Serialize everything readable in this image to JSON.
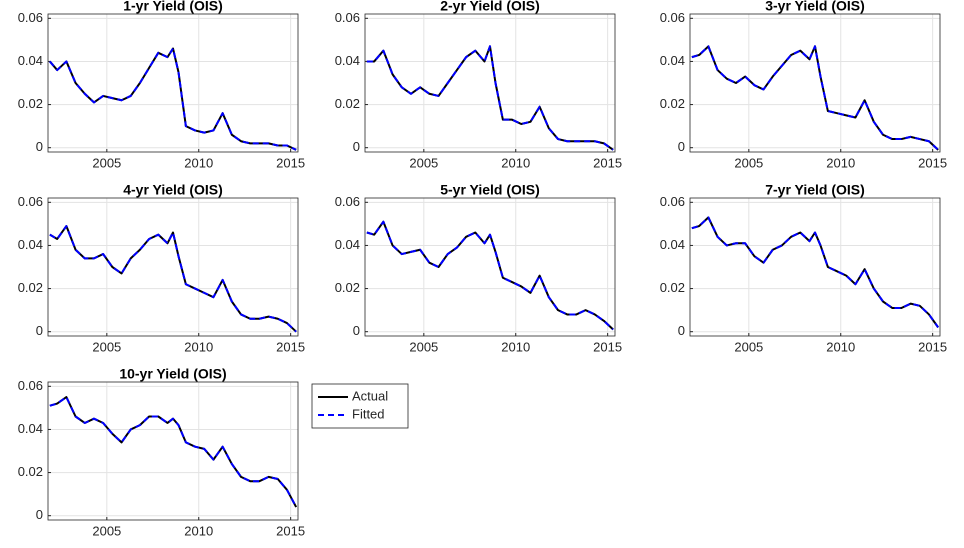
{
  "chart_data": [
    {
      "type": "line",
      "title": "1-yr Yield (OIS)",
      "xlim": [
        2001.8,
        2015.4
      ],
      "ylim": [
        -0.002,
        0.062
      ],
      "xticks": [
        2005,
        2010,
        2015
      ],
      "yticks": [
        0,
        0.02,
        0.04,
        0.06
      ],
      "grid": true,
      "x": [
        2001.9,
        2002.3,
        2002.8,
        2003.3,
        2003.8,
        2004.3,
        2004.8,
        2005.3,
        2005.8,
        2006.3,
        2006.8,
        2007.3,
        2007.8,
        2008.3,
        2008.6,
        2008.9,
        2009.3,
        2009.8,
        2010.3,
        2010.8,
        2011.3,
        2011.8,
        2012.3,
        2012.8,
        2013.3,
        2013.8,
        2014.3,
        2014.8,
        2015.3
      ],
      "series": [
        {
          "color": "#000000",
          "line_style": "solid",
          "values": [
            0.04,
            0.036,
            0.04,
            0.03,
            0.025,
            0.021,
            0.024,
            0.023,
            0.022,
            0.024,
            0.03,
            0.037,
            0.044,
            0.042,
            0.046,
            0.035,
            0.01,
            0.008,
            0.007,
            0.008,
            0.016,
            0.006,
            0.003,
            0.002,
            0.002,
            0.002,
            0.001,
            0.001,
            -0.001
          ]
        },
        {
          "color": "#0000ff",
          "line_style": "dashed",
          "values": [
            0.04,
            0.036,
            0.04,
            0.03,
            0.025,
            0.021,
            0.024,
            0.023,
            0.022,
            0.024,
            0.03,
            0.037,
            0.044,
            0.042,
            0.046,
            0.035,
            0.01,
            0.008,
            0.007,
            0.008,
            0.016,
            0.006,
            0.003,
            0.002,
            0.002,
            0.002,
            0.001,
            0.001,
            -0.001
          ]
        }
      ]
    },
    {
      "type": "line",
      "title": "2-yr Yield (OIS)",
      "xlim": [
        2001.8,
        2015.4
      ],
      "ylim": [
        -0.002,
        0.062
      ],
      "xticks": [
        2005,
        2010,
        2015
      ],
      "yticks": [
        0,
        0.02,
        0.04,
        0.06
      ],
      "grid": true,
      "x": [
        2001.9,
        2002.3,
        2002.8,
        2003.3,
        2003.8,
        2004.3,
        2004.8,
        2005.3,
        2005.8,
        2006.3,
        2006.8,
        2007.3,
        2007.8,
        2008.3,
        2008.6,
        2008.9,
        2009.3,
        2009.8,
        2010.3,
        2010.8,
        2011.3,
        2011.8,
        2012.3,
        2012.8,
        2013.3,
        2013.8,
        2014.3,
        2014.8,
        2015.3
      ],
      "series": [
        {
          "color": "#000000",
          "line_style": "solid",
          "values": [
            0.04,
            0.04,
            0.045,
            0.034,
            0.028,
            0.025,
            0.028,
            0.025,
            0.024,
            0.03,
            0.036,
            0.042,
            0.045,
            0.04,
            0.047,
            0.03,
            0.013,
            0.013,
            0.011,
            0.012,
            0.019,
            0.009,
            0.004,
            0.003,
            0.003,
            0.003,
            0.003,
            0.002,
            -0.001
          ]
        },
        {
          "color": "#0000ff",
          "line_style": "dashed",
          "values": [
            0.04,
            0.04,
            0.045,
            0.034,
            0.028,
            0.025,
            0.028,
            0.025,
            0.024,
            0.03,
            0.036,
            0.042,
            0.045,
            0.04,
            0.047,
            0.03,
            0.013,
            0.013,
            0.011,
            0.012,
            0.019,
            0.009,
            0.004,
            0.003,
            0.003,
            0.003,
            0.003,
            0.002,
            -0.001
          ]
        }
      ]
    },
    {
      "type": "line",
      "title": "3-yr Yield (OIS)",
      "xlim": [
        2001.8,
        2015.4
      ],
      "ylim": [
        -0.002,
        0.062
      ],
      "xticks": [
        2005,
        2010,
        2015
      ],
      "yticks": [
        0,
        0.02,
        0.04,
        0.06
      ],
      "grid": true,
      "x": [
        2001.9,
        2002.3,
        2002.8,
        2003.3,
        2003.8,
        2004.3,
        2004.8,
        2005.3,
        2005.8,
        2006.3,
        2006.8,
        2007.3,
        2007.8,
        2008.3,
        2008.6,
        2008.9,
        2009.3,
        2009.8,
        2010.3,
        2010.8,
        2011.3,
        2011.8,
        2012.3,
        2012.8,
        2013.3,
        2013.8,
        2014.3,
        2014.8,
        2015.3
      ],
      "series": [
        {
          "color": "#000000",
          "line_style": "solid",
          "values": [
            0.042,
            0.043,
            0.047,
            0.036,
            0.032,
            0.03,
            0.033,
            0.029,
            0.027,
            0.033,
            0.038,
            0.043,
            0.045,
            0.041,
            0.047,
            0.033,
            0.017,
            0.016,
            0.015,
            0.014,
            0.022,
            0.012,
            0.006,
            0.004,
            0.004,
            0.005,
            0.004,
            0.003,
            -0.001
          ]
        },
        {
          "color": "#0000ff",
          "line_style": "dashed",
          "values": [
            0.042,
            0.043,
            0.047,
            0.036,
            0.032,
            0.03,
            0.033,
            0.029,
            0.027,
            0.033,
            0.038,
            0.043,
            0.045,
            0.041,
            0.047,
            0.033,
            0.017,
            0.016,
            0.015,
            0.014,
            0.022,
            0.012,
            0.006,
            0.004,
            0.004,
            0.005,
            0.004,
            0.003,
            -0.001
          ]
        }
      ]
    },
    {
      "type": "line",
      "title": "4-yr Yield (OIS)",
      "xlim": [
        2001.8,
        2015.4
      ],
      "ylim": [
        -0.002,
        0.062
      ],
      "xticks": [
        2005,
        2010,
        2015
      ],
      "yticks": [
        0,
        0.02,
        0.04,
        0.06
      ],
      "grid": true,
      "x": [
        2001.9,
        2002.3,
        2002.8,
        2003.3,
        2003.8,
        2004.3,
        2004.8,
        2005.3,
        2005.8,
        2006.3,
        2006.8,
        2007.3,
        2007.8,
        2008.3,
        2008.6,
        2008.9,
        2009.3,
        2009.8,
        2010.3,
        2010.8,
        2011.3,
        2011.8,
        2012.3,
        2012.8,
        2013.3,
        2013.8,
        2014.3,
        2014.8,
        2015.3
      ],
      "series": [
        {
          "color": "#000000",
          "line_style": "solid",
          "values": [
            0.045,
            0.043,
            0.049,
            0.038,
            0.034,
            0.034,
            0.036,
            0.03,
            0.027,
            0.034,
            0.038,
            0.043,
            0.045,
            0.041,
            0.046,
            0.035,
            0.022,
            0.02,
            0.018,
            0.016,
            0.024,
            0.014,
            0.008,
            0.006,
            0.006,
            0.007,
            0.006,
            0.004,
            0
          ]
        },
        {
          "color": "#0000ff",
          "line_style": "dashed",
          "values": [
            0.045,
            0.043,
            0.049,
            0.038,
            0.034,
            0.034,
            0.036,
            0.03,
            0.027,
            0.034,
            0.038,
            0.043,
            0.045,
            0.041,
            0.046,
            0.035,
            0.022,
            0.02,
            0.018,
            0.016,
            0.024,
            0.014,
            0.008,
            0.006,
            0.006,
            0.007,
            0.006,
            0.004,
            0
          ]
        }
      ]
    },
    {
      "type": "line",
      "title": "5-yr Yield (OIS)",
      "xlim": [
        2001.8,
        2015.4
      ],
      "ylim": [
        -0.002,
        0.062
      ],
      "xticks": [
        2005,
        2010,
        2015
      ],
      "yticks": [
        0,
        0.02,
        0.04,
        0.06
      ],
      "grid": true,
      "x": [
        2001.9,
        2002.3,
        2002.8,
        2003.3,
        2003.8,
        2004.3,
        2004.8,
        2005.3,
        2005.8,
        2006.3,
        2006.8,
        2007.3,
        2007.8,
        2008.3,
        2008.6,
        2008.9,
        2009.3,
        2009.8,
        2010.3,
        2010.8,
        2011.3,
        2011.8,
        2012.3,
        2012.8,
        2013.3,
        2013.8,
        2014.3,
        2014.8,
        2015.3
      ],
      "series": [
        {
          "color": "#000000",
          "line_style": "solid",
          "values": [
            0.046,
            0.045,
            0.051,
            0.04,
            0.036,
            0.037,
            0.038,
            0.032,
            0.03,
            0.036,
            0.039,
            0.044,
            0.046,
            0.041,
            0.045,
            0.037,
            0.025,
            0.023,
            0.021,
            0.018,
            0.026,
            0.016,
            0.01,
            0.008,
            0.008,
            0.01,
            0.008,
            0.005,
            0.001
          ]
        },
        {
          "color": "#0000ff",
          "line_style": "dashed",
          "values": [
            0.046,
            0.045,
            0.051,
            0.04,
            0.036,
            0.037,
            0.038,
            0.032,
            0.03,
            0.036,
            0.039,
            0.044,
            0.046,
            0.041,
            0.045,
            0.037,
            0.025,
            0.023,
            0.021,
            0.018,
            0.026,
            0.016,
            0.01,
            0.008,
            0.008,
            0.01,
            0.008,
            0.005,
            0.001
          ]
        }
      ]
    },
    {
      "type": "line",
      "title": "7-yr Yield (OIS)",
      "xlim": [
        2001.8,
        2015.4
      ],
      "ylim": [
        -0.002,
        0.062
      ],
      "xticks": [
        2005,
        2010,
        2015
      ],
      "yticks": [
        0,
        0.02,
        0.04,
        0.06
      ],
      "grid": true,
      "x": [
        2001.9,
        2002.3,
        2002.8,
        2003.3,
        2003.8,
        2004.3,
        2004.8,
        2005.3,
        2005.8,
        2006.3,
        2006.8,
        2007.3,
        2007.8,
        2008.3,
        2008.6,
        2008.9,
        2009.3,
        2009.8,
        2010.3,
        2010.8,
        2011.3,
        2011.8,
        2012.3,
        2012.8,
        2013.3,
        2013.8,
        2014.3,
        2014.8,
        2015.3
      ],
      "series": [
        {
          "color": "#000000",
          "line_style": "solid",
          "values": [
            0.048,
            0.049,
            0.053,
            0.044,
            0.04,
            0.041,
            0.041,
            0.035,
            0.032,
            0.038,
            0.04,
            0.044,
            0.046,
            0.042,
            0.046,
            0.04,
            0.03,
            0.028,
            0.026,
            0.022,
            0.029,
            0.02,
            0.014,
            0.011,
            0.011,
            0.013,
            0.012,
            0.008,
            0.002
          ]
        },
        {
          "color": "#0000ff",
          "line_style": "dashed",
          "values": [
            0.048,
            0.049,
            0.053,
            0.044,
            0.04,
            0.041,
            0.041,
            0.035,
            0.032,
            0.038,
            0.04,
            0.044,
            0.046,
            0.042,
            0.046,
            0.04,
            0.03,
            0.028,
            0.026,
            0.022,
            0.029,
            0.02,
            0.014,
            0.011,
            0.011,
            0.013,
            0.012,
            0.008,
            0.002
          ]
        }
      ]
    },
    {
      "type": "line",
      "title": "10-yr Yield (OIS)",
      "xlim": [
        2001.8,
        2015.4
      ],
      "ylim": [
        -0.002,
        0.062
      ],
      "xticks": [
        2005,
        2010,
        2015
      ],
      "yticks": [
        0,
        0.02,
        0.04,
        0.06
      ],
      "grid": true,
      "legend": "outside right",
      "x": [
        2001.9,
        2002.3,
        2002.8,
        2003.3,
        2003.8,
        2004.3,
        2004.8,
        2005.3,
        2005.8,
        2006.3,
        2006.8,
        2007.3,
        2007.8,
        2008.3,
        2008.6,
        2008.9,
        2009.3,
        2009.8,
        2010.3,
        2010.8,
        2011.3,
        2011.8,
        2012.3,
        2012.8,
        2013.3,
        2013.8,
        2014.3,
        2014.8,
        2015.3
      ],
      "series": [
        {
          "name": "Actual",
          "color": "#000000",
          "line_style": "solid",
          "values": [
            0.051,
            0.052,
            0.055,
            0.046,
            0.043,
            0.045,
            0.043,
            0.038,
            0.034,
            0.04,
            0.042,
            0.046,
            0.046,
            0.043,
            0.045,
            0.042,
            0.034,
            0.032,
            0.031,
            0.026,
            0.032,
            0.024,
            0.018,
            0.016,
            0.016,
            0.018,
            0.017,
            0.012,
            0.004
          ]
        },
        {
          "name": "Fitted",
          "color": "#0000ff",
          "line_style": "dashed",
          "values": [
            0.051,
            0.052,
            0.055,
            0.046,
            0.043,
            0.045,
            0.043,
            0.038,
            0.034,
            0.04,
            0.042,
            0.046,
            0.046,
            0.043,
            0.045,
            0.042,
            0.034,
            0.032,
            0.031,
            0.026,
            0.032,
            0.024,
            0.018,
            0.016,
            0.016,
            0.018,
            0.017,
            0.012,
            0.004
          ]
        }
      ]
    }
  ]
}
